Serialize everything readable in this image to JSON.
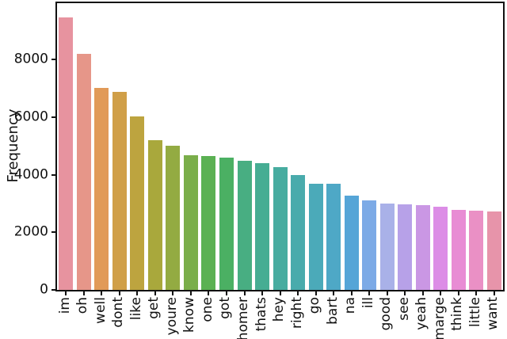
{
  "chart_data": {
    "type": "bar",
    "title": "",
    "xlabel": "",
    "ylabel": "Frequency",
    "categories": [
      "im",
      "oh",
      "well",
      "dont",
      "like",
      "get",
      "youre",
      "know",
      "one",
      "got",
      "homer",
      "thats",
      "hey",
      "right",
      "go",
      "bart",
      "na",
      "ill",
      "good",
      "see",
      "yeah",
      "marge",
      "think",
      "little",
      "want"
    ],
    "values": [
      9460,
      8190,
      7010,
      6870,
      6010,
      5200,
      5000,
      4670,
      4650,
      4580,
      4490,
      4410,
      4250,
      3990,
      3690,
      3680,
      3270,
      3100,
      2990,
      2980,
      2950,
      2890,
      2780,
      2740,
      2720
    ],
    "bar_colors": [
      "#e7939f",
      "#e69689",
      "#e19a58",
      "#d09f48",
      "#bda43f",
      "#a9a83c",
      "#93ab42",
      "#7aae4a",
      "#5bb153",
      "#4bb063",
      "#48ae82",
      "#46ad93",
      "#47aca0",
      "#49abac",
      "#4baab9",
      "#4ea8c6",
      "#55a5d7",
      "#7caae6",
      "#a9b1e8",
      "#b7a1e8",
      "#ca97e4",
      "#dc8de6",
      "#e88cd4",
      "#ea90c5",
      "#e794aa"
    ],
    "yticks": [
      0,
      2000,
      4000,
      6000,
      8000
    ],
    "ylim": [
      0,
      9950
    ],
    "grid": false,
    "legend": "none",
    "x_tick_rotation": 90,
    "axis_color": "#111111",
    "background_color": "#ffffff"
  }
}
